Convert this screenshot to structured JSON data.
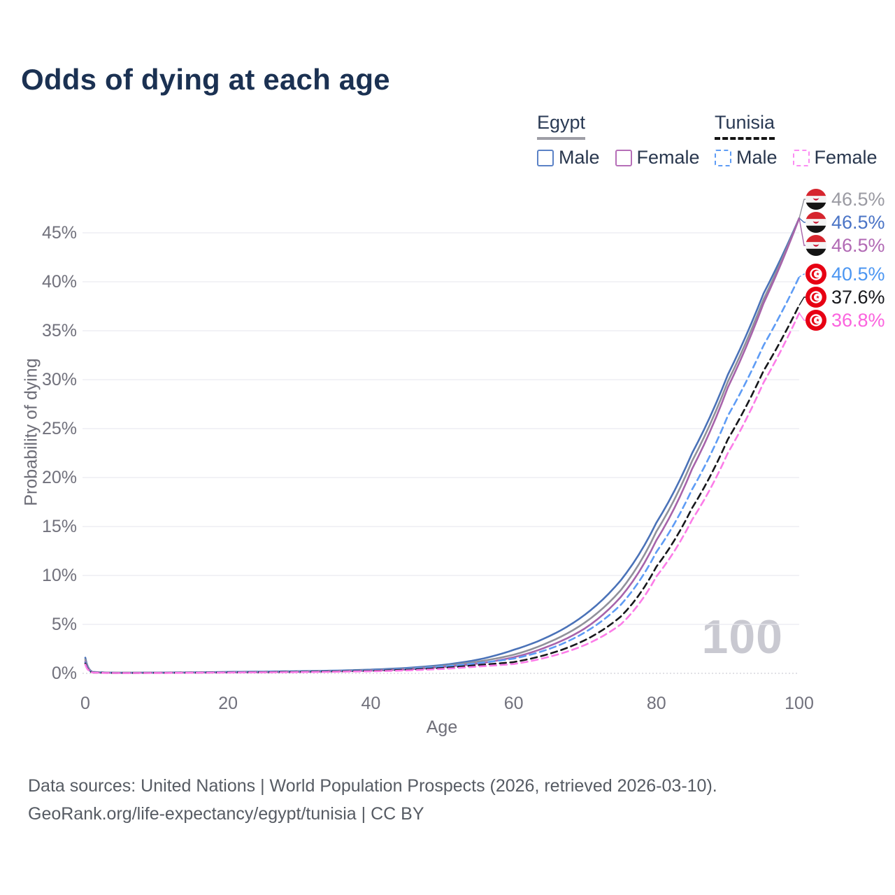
{
  "title": "Odds of dying at each age",
  "watermark": "100",
  "legend": {
    "groups": [
      {
        "name": "Egypt",
        "underline_style": "solid",
        "underline_color": "#9e9ea6",
        "items": [
          {
            "label": "Male",
            "color": "#5b82c6",
            "style": "solid"
          },
          {
            "label": "Female",
            "color": "#b66fb8",
            "style": "solid"
          }
        ]
      },
      {
        "name": "Tunisia",
        "underline_style": "dashed",
        "underline_color": "#141414",
        "items": [
          {
            "label": "Male",
            "color": "#5e9cf5",
            "style": "dashed"
          },
          {
            "label": "Female",
            "color": "#fb8df3",
            "style": "dashed"
          }
        ]
      }
    ]
  },
  "chart_data": {
    "type": "line",
    "title": "Odds of dying at each age",
    "xlabel": "Age",
    "ylabel": "Probability of dying",
    "xlim": [
      0,
      100
    ],
    "ylim": [
      0,
      47
    ],
    "x_ticks": [
      0,
      20,
      40,
      60,
      80,
      100
    ],
    "y_ticks": [
      0,
      5,
      10,
      15,
      20,
      25,
      30,
      35,
      40,
      45
    ],
    "y_tick_suffix": "%",
    "grid": "horizontal",
    "legend_position": "top-right",
    "x": [
      0,
      1,
      3,
      5,
      10,
      15,
      20,
      25,
      30,
      35,
      40,
      45,
      50,
      55,
      60,
      65,
      70,
      75,
      80,
      85,
      90,
      95,
      100
    ],
    "series": [
      {
        "name": "Egypt Male",
        "country": "Egypt",
        "sex": "Male",
        "color": "#4a72b8",
        "dash": "solid",
        "end_label": "46.5%",
        "values": [
          1.6,
          0.15,
          0.08,
          0.07,
          0.08,
          0.1,
          0.15,
          0.18,
          0.22,
          0.28,
          0.38,
          0.55,
          0.85,
          1.4,
          2.4,
          3.8,
          6.0,
          9.5,
          15.4,
          22.5,
          30.5,
          38.8,
          46.5
        ]
      },
      {
        "name": "Egypt Both sexes",
        "country": "Egypt",
        "sex": "Both",
        "color": "#90919a",
        "dash": "solid",
        "end_label": "46.5%",
        "values": [
          1.4,
          0.13,
          0.07,
          0.06,
          0.07,
          0.09,
          0.12,
          0.15,
          0.18,
          0.24,
          0.32,
          0.47,
          0.75,
          1.2,
          1.9,
          3.2,
          5.2,
          8.5,
          14.5,
          21.7,
          29.8,
          38.2,
          46.5
        ]
      },
      {
        "name": "Egypt Female",
        "country": "Egypt",
        "sex": "Female",
        "color": "#a763aa",
        "dash": "solid",
        "end_label": "46.5%",
        "values": [
          1.2,
          0.11,
          0.06,
          0.05,
          0.06,
          0.08,
          0.1,
          0.12,
          0.15,
          0.2,
          0.28,
          0.4,
          0.65,
          1.0,
          1.64,
          2.8,
          4.6,
          7.8,
          13.6,
          20.9,
          29.2,
          37.8,
          46.5
        ]
      },
      {
        "name": "Tunisia Male",
        "country": "Tunisia",
        "sex": "Male",
        "color": "#5e9cf5",
        "dash": "dashed",
        "end_label": "40.5%",
        "values": [
          1.1,
          0.1,
          0.06,
          0.05,
          0.06,
          0.08,
          0.12,
          0.15,
          0.18,
          0.23,
          0.3,
          0.45,
          0.7,
          1.05,
          1.5,
          2.5,
          4.2,
          7.0,
          12.4,
          18.8,
          26.3,
          33.5,
          40.5
        ]
      },
      {
        "name": "Tunisia Both sexes",
        "country": "Tunisia",
        "sex": "Both",
        "color": "#17171b",
        "dash": "dashed",
        "end_label": "37.6%",
        "values": [
          1.0,
          0.09,
          0.05,
          0.04,
          0.05,
          0.07,
          0.1,
          0.12,
          0.15,
          0.19,
          0.25,
          0.37,
          0.55,
          0.85,
          1.15,
          2.0,
          3.4,
          5.8,
          10.9,
          16.9,
          23.9,
          30.9,
          37.6
        ]
      },
      {
        "name": "Tunisia Female",
        "country": "Tunisia",
        "sex": "Female",
        "color": "#fc7ce8",
        "dash": "dashed",
        "end_label": "36.8%",
        "values": [
          0.9,
          0.08,
          0.04,
          0.03,
          0.04,
          0.06,
          0.08,
          0.1,
          0.12,
          0.16,
          0.21,
          0.3,
          0.45,
          0.7,
          0.95,
          1.7,
          2.9,
          5.0,
          9.9,
          15.7,
          22.5,
          29.7,
          36.8
        ]
      }
    ],
    "end_labels": [
      {
        "flag": "egypt",
        "text": "46.5%",
        "color": "#9a9aa2"
      },
      {
        "flag": "egypt",
        "text": "46.5%",
        "color": "#4a74c6"
      },
      {
        "flag": "egypt",
        "text": "46.5%",
        "color": "#b169b4"
      },
      {
        "flag": "tunisia",
        "text": "40.5%",
        "color": "#4b96f2"
      },
      {
        "flag": "tunisia",
        "text": "37.6%",
        "color": "#17181c"
      },
      {
        "flag": "tunisia",
        "text": "36.8%",
        "color": "#fb63de"
      }
    ],
    "annotations": [
      {
        "text": "100",
        "role": "hovered-age-watermark"
      }
    ]
  },
  "footer": {
    "line1": "Data sources: United Nations | World Population Prospects (2026, retrieved 2026-03-10).",
    "line2": "GeoRank.org/life-expectancy/egypt/tunisia | CC BY"
  }
}
